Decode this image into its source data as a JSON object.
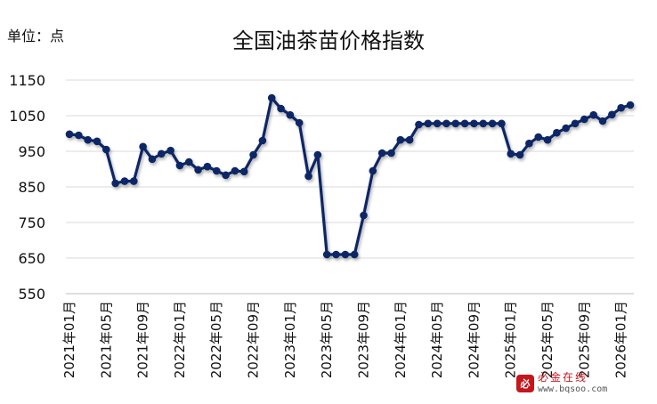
{
  "unit_label": "单位：点",
  "watermark": {
    "logo": "必",
    "name": "必金在线",
    "url": "www.bqsoo.com"
  },
  "chart_data": {
    "type": "line",
    "title": "全国油茶苗价格指数",
    "ylim": [
      550,
      1150
    ],
    "yticks": [
      550,
      650,
      750,
      850,
      950,
      1050,
      1150
    ],
    "grid": true,
    "line_color": "#0a2566",
    "x": [
      "2021年01月",
      "2021年02月",
      "2021年03月",
      "2021年04月",
      "2021年05月",
      "2021年06月",
      "2021年07月",
      "2021年08月",
      "2021年09月",
      "2021年10月",
      "2021年11月",
      "2021年12月",
      "2022年01月",
      "2022年02月",
      "2022年03月",
      "2022年04月",
      "2022年05月",
      "2022年06月",
      "2022年07月",
      "2022年08月",
      "2022年09月",
      "2022年10月",
      "2022年11月",
      "2022年12月",
      "2023年01月",
      "2023年02月",
      "2023年03月",
      "2023年04月",
      "2023年05月",
      "2023年06月",
      "2023年07月",
      "2023年08月",
      "2023年09月",
      "2023年10月",
      "2023年11月",
      "2023年12月",
      "2024年01月",
      "2024年02月",
      "2024年03月",
      "2024年04月",
      "2024年05月",
      "2024年06月",
      "2024年07月",
      "2024年08月",
      "2024年09月",
      "2024年10月",
      "2024年11月",
      "2024年12月",
      "2025年01月",
      "2025年02月",
      "2025年03月",
      "2025年04月",
      "2025年05月",
      "2025年06月",
      "2025年07月",
      "2025年08月",
      "2025年09月",
      "2025年10月",
      "2025年11月",
      "2025年12月",
      "2026年01月",
      "2026年02月"
    ],
    "xtick_labels": [
      "2021年01月",
      "2021年05月",
      "2021年09月",
      "2022年01月",
      "2022年05月",
      "2022年09月",
      "2023年01月",
      "2023年05月",
      "2023年09月",
      "2024年01月",
      "2024年05月",
      "2024年09月",
      "2025年01月",
      "2025年05月",
      "2025年09月",
      "2026年01月"
    ],
    "values": [
      998,
      995,
      982,
      978,
      955,
      860,
      866,
      866,
      963,
      928,
      943,
      952,
      910,
      920,
      898,
      907,
      895,
      883,
      895,
      893,
      940,
      980,
      1100,
      1070,
      1052,
      1030,
      880,
      940,
      660,
      660,
      660,
      660,
      770,
      895,
      945,
      945,
      982,
      982,
      1025,
      1028,
      1028,
      1028,
      1028,
      1028,
      1028,
      1028,
      1028,
      1028,
      943,
      940,
      972,
      990,
      982,
      1002,
      1015,
      1028,
      1040,
      1052,
      1035,
      1053,
      1072,
      1080
    ]
  }
}
